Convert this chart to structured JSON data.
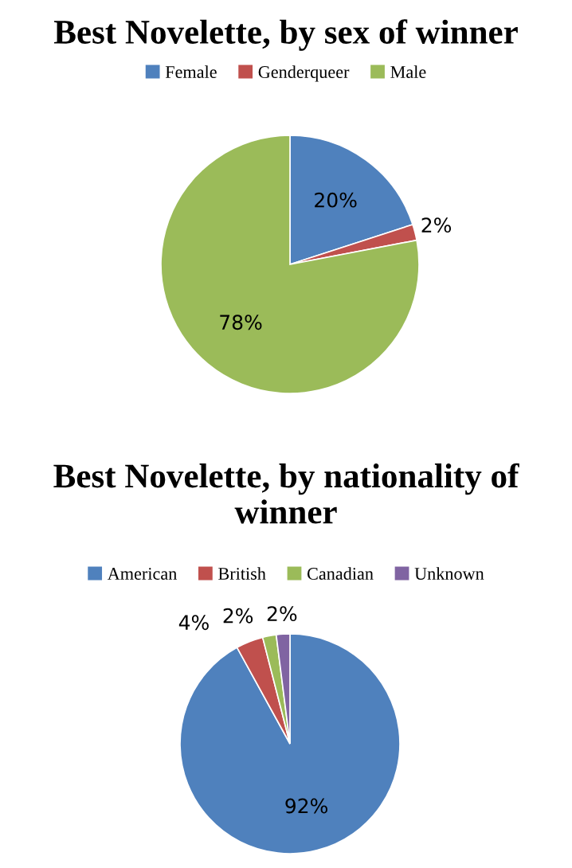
{
  "chart_data": [
    {
      "type": "pie",
      "title": "Best Novelette, by sex of winner",
      "categories": [
        "Female",
        "Genderqueer",
        "Male"
      ],
      "values": [
        20,
        2,
        78
      ],
      "colors": [
        "#4f81bd",
        "#c0504d",
        "#9bbb59"
      ],
      "value_labels": [
        "20%",
        "2%",
        "78%"
      ],
      "legend": "top"
    },
    {
      "type": "pie",
      "title": "Best Novelette, by nationality of winner",
      "categories": [
        "American",
        "British",
        "Canadian",
        "Unknown"
      ],
      "values": [
        92,
        4,
        2,
        2
      ],
      "colors": [
        "#4f81bd",
        "#c0504d",
        "#9bbb59",
        "#8064a2"
      ],
      "value_labels": [
        "92%",
        "4%",
        "2%",
        "2%"
      ],
      "legend": "top"
    }
  ]
}
